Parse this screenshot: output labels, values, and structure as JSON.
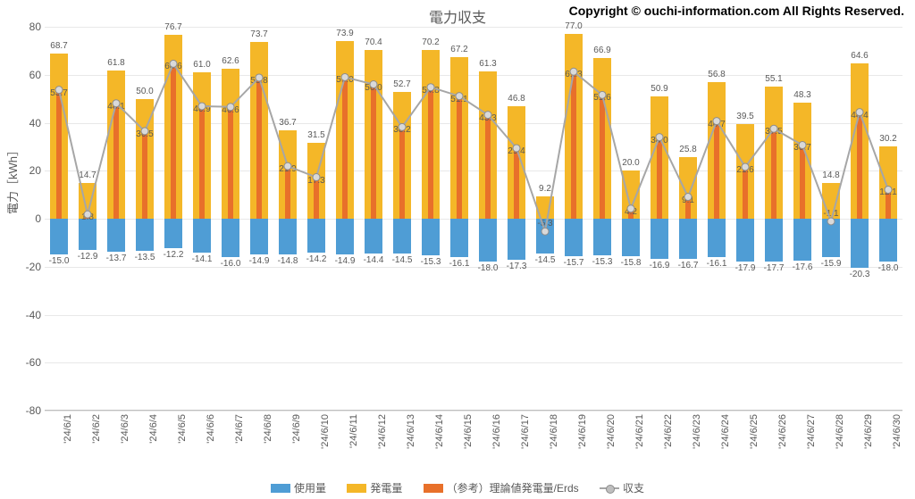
{
  "title": "電力収支",
  "copyright": "Copyright © ouchi-information.com All Rights Reserved.",
  "ylabel": "電力［kWh］",
  "ylim": [
    -80,
    80
  ],
  "ytick_step": 20,
  "colors": {
    "usage": "#4f9dd5",
    "gen": "#f4b728",
    "ref": "#e8702a",
    "line": "#a6a6a6",
    "marker_fill": "#d9d9d9",
    "marker_stroke": "#8c8c8c",
    "grid": "#e8e8e8",
    "text": "#595959"
  },
  "legend": {
    "usage": "使用量",
    "gen": "発電量",
    "ref": "（参考）理論値発電量/Erds",
    "balance": "収支"
  },
  "categories": [
    "'24/6/1",
    "'24/6/2",
    "'24/6/3",
    "'24/6/4",
    "'24/6/5",
    "'24/6/6",
    "'24/6/7",
    "'24/6/8",
    "'24/6/9",
    "'24/6/10",
    "'24/6/11",
    "'24/6/12",
    "'24/6/13",
    "'24/6/14",
    "'24/6/15",
    "'24/6/16",
    "'24/6/17",
    "'24/6/18",
    "'24/6/19",
    "'24/6/20",
    "'24/6/21",
    "'24/6/22",
    "'24/6/23",
    "'24/6/24",
    "'24/6/25",
    "'24/6/26",
    "'24/6/27",
    "'24/6/28",
    "'24/6/29",
    "'24/6/30"
  ],
  "data": [
    {
      "usage": -15.0,
      "gen": 68.7,
      "ref": 53.7,
      "balance": 53.7
    },
    {
      "usage": -12.9,
      "gen": 14.7,
      "ref": 1.8,
      "balance": 1.8
    },
    {
      "usage": -13.7,
      "gen": 61.8,
      "ref": 48.1,
      "balance": 48.1
    },
    {
      "usage": -13.5,
      "gen": 50.0,
      "ref": 36.5,
      "balance": 36.5
    },
    {
      "usage": -12.2,
      "gen": 76.7,
      "ref": 64.6,
      "balance": 64.6
    },
    {
      "usage": -14.1,
      "gen": 61.0,
      "ref": 46.9,
      "balance": 46.9
    },
    {
      "usage": -16.0,
      "gen": 62.6,
      "ref": 46.6,
      "balance": 46.6
    },
    {
      "usage": -14.9,
      "gen": 73.7,
      "ref": 58.8,
      "balance": 58.8
    },
    {
      "usage": -14.8,
      "gen": 36.7,
      "ref": 21.9,
      "balance": 21.9
    },
    {
      "usage": -14.2,
      "gen": 31.5,
      "ref": 17.3,
      "balance": 17.3
    },
    {
      "usage": -14.9,
      "gen": 73.9,
      "ref": 59.0,
      "balance": 59.0
    },
    {
      "usage": -14.4,
      "gen": 70.4,
      "ref": 56.0,
      "balance": 56.0
    },
    {
      "usage": -14.5,
      "gen": 52.7,
      "ref": 38.2,
      "balance": 38.2
    },
    {
      "usage": -15.3,
      "gen": 70.2,
      "ref": 54.8,
      "balance": 54.8
    },
    {
      "usage": -16.1,
      "gen": 67.2,
      "ref": 51.1,
      "balance": 51.1
    },
    {
      "usage": -18.0,
      "gen": 61.3,
      "ref": 43.3,
      "balance": 43.3
    },
    {
      "usage": -17.3,
      "gen": 46.8,
      "ref": 29.4,
      "balance": 29.4
    },
    {
      "usage": -14.5,
      "gen": 9.2,
      "ref": -5.3,
      "balance": -5.3
    },
    {
      "usage": -15.7,
      "gen": 77.0,
      "ref": 61.3,
      "balance": 61.3
    },
    {
      "usage": -15.3,
      "gen": 66.9,
      "ref": 51.6,
      "balance": 51.6
    },
    {
      "usage": -15.8,
      "gen": 20.0,
      "ref": 4.2,
      "balance": 4.2
    },
    {
      "usage": -16.9,
      "gen": 50.9,
      "ref": 34.0,
      "balance": 34.0
    },
    {
      "usage": -16.7,
      "gen": 25.8,
      "ref": 9.1,
      "balance": 9.1
    },
    {
      "usage": -16.1,
      "gen": 56.8,
      "ref": 40.7,
      "balance": 40.7
    },
    {
      "usage": -17.9,
      "gen": 39.5,
      "ref": 21.6,
      "balance": 21.6
    },
    {
      "usage": -17.7,
      "gen": 55.1,
      "ref": 37.5,
      "balance": 37.5
    },
    {
      "usage": -17.6,
      "gen": 48.3,
      "ref": 30.7,
      "balance": 30.7
    },
    {
      "usage": -15.9,
      "gen": 14.8,
      "ref": -1.1,
      "balance": -1.1
    },
    {
      "usage": -20.3,
      "gen": 64.6,
      "ref": 44.4,
      "balance": 44.4
    },
    {
      "usage": -18.0,
      "gen": 30.2,
      "ref": 12.1,
      "balance": 12.1
    }
  ]
}
